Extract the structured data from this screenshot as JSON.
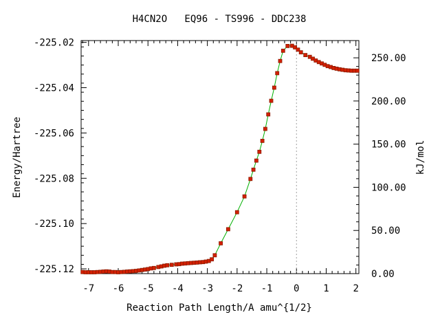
{
  "chart_data": {
    "type": "line",
    "title": "H4CN2O   EQ96 - TS996 - DDC238",
    "xlabel": "Reaction Path Length/A amu^{1/2}",
    "ylabel": "Energy/Hartree",
    "y2label": "kJ/mol",
    "xlim": [
      -7.25,
      2.1
    ],
    "ylim": [
      -225.1221,
      -225.0192
    ],
    "y2lim": [
      0,
      270
    ],
    "x_ticks": [
      "-7",
      "-6",
      "-5",
      "-4",
      "-3",
      "-2",
      "-1",
      "0",
      "1",
      "2"
    ],
    "y_ticks": [
      "-225.02",
      "-225.04",
      "-225.06",
      "-225.08",
      "-225.10",
      "-225.12"
    ],
    "y2_ticks": [
      "0.00",
      "50.00",
      "100.00",
      "150.00",
      "200.00",
      "250.00"
    ],
    "grid": false,
    "legend": "none",
    "ts_marker_x": 0,
    "colors": {
      "line": "#00b000",
      "marker": "#d42000",
      "marker_edge": "#8b1a00",
      "ts_line": "#a0a0a0"
    },
    "series": [
      {
        "x": [
          -7.2,
          -7.1,
          -7.0,
          -6.9,
          -6.8,
          -6.7,
          -6.6,
          -6.5,
          -6.4,
          -6.3,
          -6.2,
          -6.1,
          -6.0,
          -5.9,
          -5.8,
          -5.7,
          -5.6,
          -5.5,
          -5.4,
          -5.3,
          -5.2,
          -5.1,
          -5.0,
          -4.9,
          -4.8,
          -4.65,
          -4.55,
          -4.45,
          -4.35,
          -4.2,
          -4.05,
          -3.95,
          -3.85,
          -3.75,
          -3.65,
          -3.55,
          -3.45,
          -3.35,
          -3.25,
          -3.15,
          -3.05,
          -2.95,
          -2.85,
          -2.75,
          -2.55,
          -2.3,
          -2.0,
          -1.75,
          -1.55,
          -1.45,
          -1.35,
          -1.25,
          -1.15,
          -1.05,
          -0.95,
          -0.85,
          -0.75,
          -0.65,
          -0.55,
          -0.45,
          -0.3,
          -0.15,
          -0.05,
          0.05,
          0.15,
          0.3,
          0.45,
          0.55,
          0.65,
          0.75,
          0.85,
          0.95,
          1.05,
          1.15,
          1.25,
          1.35,
          1.45,
          1.55,
          1.65,
          1.75,
          1.85,
          1.95,
          2.05
        ],
        "y": [
          -225.1214,
          -225.1215,
          -225.1215,
          -225.1215,
          -225.1215,
          -225.1214,
          -225.1213,
          -225.1212,
          -225.1211,
          -225.1212,
          -225.1214,
          -225.1214,
          -225.1215,
          -225.1214,
          -225.1213,
          -225.1212,
          -225.1211,
          -225.121,
          -225.1209,
          -225.1207,
          -225.1205,
          -225.1203,
          -225.1201,
          -225.1198,
          -225.1196,
          -225.1192,
          -225.1189,
          -225.1186,
          -225.1184,
          -225.1182,
          -225.118,
          -225.1179,
          -225.1177,
          -225.1176,
          -225.1175,
          -225.1174,
          -225.1173,
          -225.1172,
          -225.1171,
          -225.117,
          -225.1168,
          -225.1165,
          -225.1158,
          -225.114,
          -225.1087,
          -225.1025,
          -225.095,
          -225.088,
          -225.0803,
          -225.0762,
          -225.0722,
          -225.0683,
          -225.0635,
          -225.0582,
          -225.0518,
          -225.0458,
          -225.04,
          -225.0336,
          -225.0282,
          -225.0237,
          -225.0216,
          -225.0215,
          -225.0222,
          -225.0232,
          -225.0244,
          -225.0256,
          -225.0264,
          -225.0272,
          -225.028,
          -225.0287,
          -225.0293,
          -225.0299,
          -225.0305,
          -225.0309,
          -225.0313,
          -225.0316,
          -225.0319,
          -225.0321,
          -225.0323,
          -225.0324,
          -225.0325,
          -225.0325,
          -225.0325
        ]
      }
    ]
  }
}
